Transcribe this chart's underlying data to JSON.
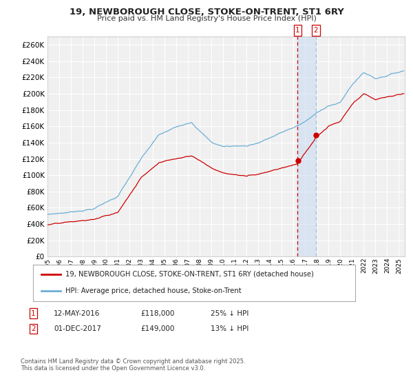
{
  "title": "19, NEWBOROUGH CLOSE, STOKE-ON-TRENT, ST1 6RY",
  "subtitle": "Price paid vs. HM Land Registry's House Price Index (HPI)",
  "ylim": [
    0,
    270000
  ],
  "yticks": [
    0,
    20000,
    40000,
    60000,
    80000,
    100000,
    120000,
    140000,
    160000,
    180000,
    200000,
    220000,
    240000,
    260000
  ],
  "hpi_color": "#6baed6",
  "house_color": "#cc0000",
  "vline1_color": "#cc0000",
  "vline2_color": "#aec7e8",
  "background_color": "#f0f0f0",
  "grid_color": "#ffffff",
  "transaction1_date": 2016.36,
  "transaction1_price": 118000,
  "transaction1_label": "1",
  "transaction2_date": 2017.92,
  "transaction2_price": 149000,
  "transaction2_label": "2",
  "legend_house": "19, NEWBOROUGH CLOSE, STOKE-ON-TRENT, ST1 6RY (detached house)",
  "legend_hpi": "HPI: Average price, detached house, Stoke-on-Trent",
  "note1_label": "1",
  "note1_date": "12-MAY-2016",
  "note1_price": "£118,000",
  "note1_hpi": "25% ↓ HPI",
  "note2_label": "2",
  "note2_date": "01-DEC-2017",
  "note2_price": "£149,000",
  "note2_hpi": "13% ↓ HPI",
  "copyright": "Contains HM Land Registry data © Crown copyright and database right 2025.\nThis data is licensed under the Open Government Licence v3.0.",
  "xstart": 1995.0,
  "xend": 2025.5
}
